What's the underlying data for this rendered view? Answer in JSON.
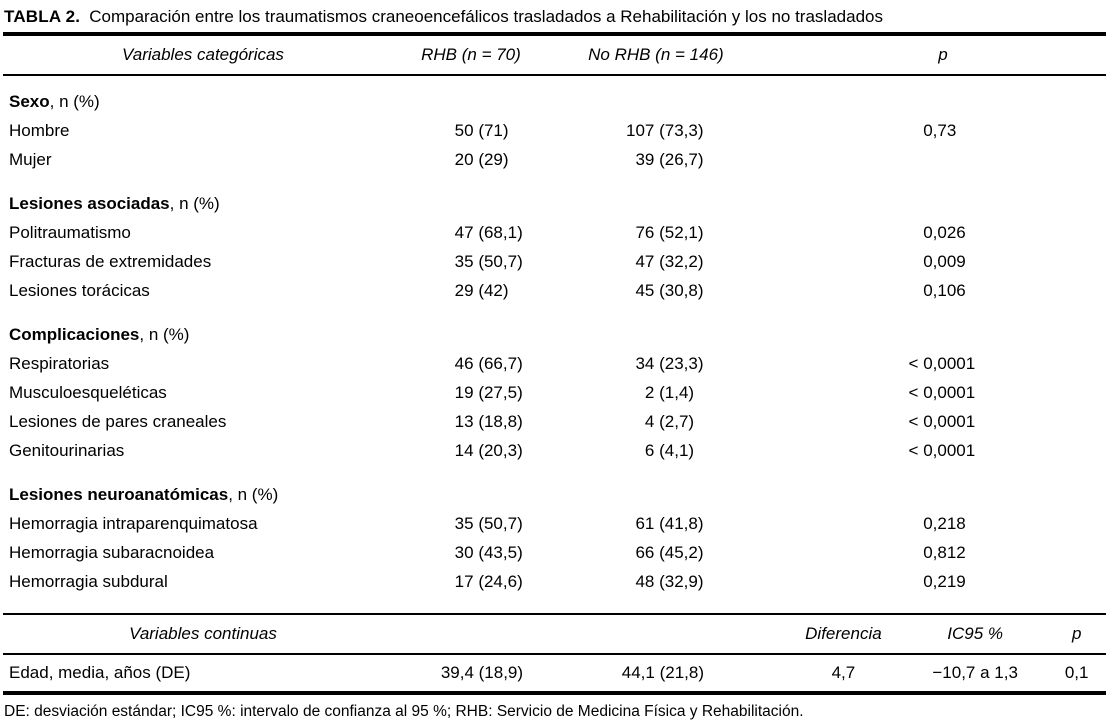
{
  "title": {
    "label": "TABLA 2.",
    "text": "Comparación entre los traumatismos craneoencefálicos trasladados a Rehabilitación y los no trasladados"
  },
  "categorical": {
    "headers": {
      "variable": "Variables categóricas",
      "rhb": "RHB (n = 70)",
      "no_rhb": "No RHB (n = 146)",
      "p": "p"
    },
    "sections": [
      {
        "label": "Sexo",
        "suffix": ", n (%)",
        "rows": [
          {
            "label": "Hombre",
            "rhb": "50 (71)",
            "no_rhb": "107 (73,3)",
            "p": "0,73"
          },
          {
            "label": "Mujer",
            "rhb": "20 (29)",
            "no_rhb": "39 (26,7)",
            "p": ""
          }
        ]
      },
      {
        "label": "Lesiones asociadas",
        "suffix": ", n (%)",
        "rows": [
          {
            "label": "Politraumatismo",
            "rhb": "47 (68,1)",
            "no_rhb": "76 (52,1)",
            "p": "0,026"
          },
          {
            "label": "Fracturas de extremidades",
            "rhb": "35 (50,7)",
            "no_rhb": "47 (32,2)",
            "p": "0,009"
          },
          {
            "label": "Lesiones torácicas",
            "rhb": "29 (42)",
            "no_rhb": "45 (30,8)",
            "p": "0,106"
          }
        ]
      },
      {
        "label": "Complicaciones",
        "suffix": ", n (%)",
        "rows": [
          {
            "label": "Respiratorias",
            "rhb": "46 (66,7)",
            "no_rhb": "34 (23,3)",
            "p": "< 0,0001"
          },
          {
            "label": "Musculoesqueléticas",
            "rhb": "19 (27,5)",
            "no_rhb": "2 (1,4)",
            "p": "< 0,0001"
          },
          {
            "label": "Lesiones de pares craneales",
            "rhb": "13 (18,8)",
            "no_rhb": "4 (2,7)",
            "p": "< 0,0001"
          },
          {
            "label": "Genitourinarias",
            "rhb": "14 (20,3)",
            "no_rhb": "6 (4,1)",
            "p": "< 0,0001"
          }
        ]
      },
      {
        "label": "Lesiones neuroanatómicas",
        "suffix": ", n (%)",
        "rows": [
          {
            "label": "Hemorragia intraparenquimatosa",
            "rhb": "35 (50,7)",
            "no_rhb": "61 (41,8)",
            "p": "0,218"
          },
          {
            "label": "Hemorragia subaracnoidea",
            "rhb": "30 (43,5)",
            "no_rhb": "66 (45,2)",
            "p": "0,812"
          },
          {
            "label": "Hemorragia subdural",
            "rhb": "17 (24,6)",
            "no_rhb": "48 (32,9)",
            "p": "0,219"
          }
        ]
      }
    ]
  },
  "continuous": {
    "headers": {
      "variable": "Variables continuas",
      "diferencia": "Diferencia",
      "ic95": "IC95 %",
      "p": "p"
    },
    "rows": [
      {
        "label": "Edad, media, años (DE)",
        "rhb": "39,4 (18,9)",
        "no_rhb": "44,1 (21,8)",
        "diferencia": "4,7",
        "ic95": "−10,7 a 1,3",
        "p": "0,1"
      }
    ]
  },
  "footnote": "DE: desviación estándar; IC95 %: intervalo de confianza al 95 %; RHB: Servicio de Medicina Física y Rehabilitación.",
  "colors": {
    "text": "#000000",
    "background": "#ffffff",
    "rule": "#000000"
  }
}
